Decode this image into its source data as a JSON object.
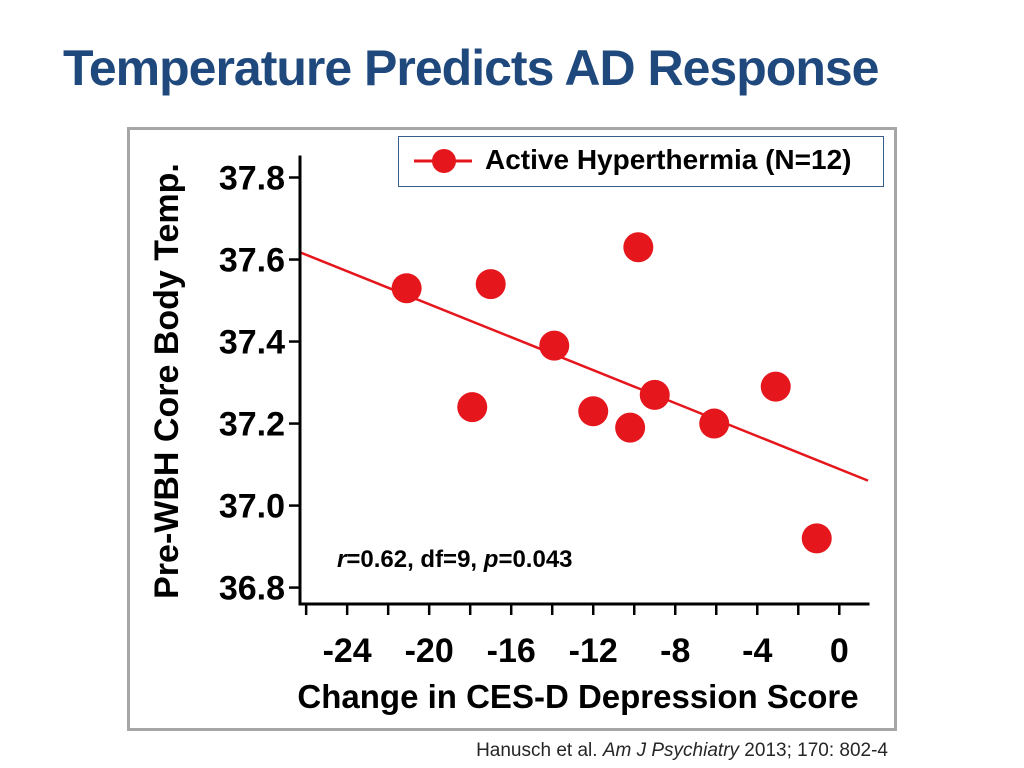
{
  "slide": {
    "title": "Temperature Predicts AD Response",
    "citation": [
      {
        "text": "Hanusch et al. ",
        "italic": false
      },
      {
        "text": "Am J Psychiatry",
        "italic": true
      },
      {
        "text": " 2013; 170: 802-4",
        "italic": false
      }
    ]
  },
  "colors": {
    "title": "#1F497D",
    "axes": "#000000",
    "frame_border": "#A6A6A6",
    "legend_border": "#385D8A"
  },
  "chart_data": {
    "type": "scatter",
    "xlabel": "Change in CES-D Depression Score",
    "ylabel": "Pre-WBH Core Body Temp.",
    "xlim": [
      -26.3,
      1.4
    ],
    "ylim": [
      36.76,
      37.85
    ],
    "xticks": [
      -24,
      -20,
      -16,
      -12,
      -8,
      -4,
      0
    ],
    "xtick_labels": [
      "-24",
      "-20",
      "-16",
      "-12",
      "-8",
      "-4",
      "0"
    ],
    "x_tick_marks": [
      -26,
      -24,
      -22,
      -20,
      -18,
      -16,
      -14,
      -12,
      -10,
      -8,
      -6,
      -4,
      -2,
      0
    ],
    "yticks": [
      36.8,
      37.0,
      37.2,
      37.4,
      37.6,
      37.8
    ],
    "ytick_labels": [
      "36.8",
      "37.0",
      "37.2",
      "37.4",
      "37.6",
      "37.8"
    ],
    "grid": false,
    "legend": {
      "position": "top-right"
    },
    "series": [
      {
        "name": "Active Hyperthermia (N=12)",
        "marker": "circle",
        "color": "#E5161C",
        "x": [
          -21.1,
          -17.9,
          -17.0,
          -13.9,
          -12.0,
          -10.2,
          -9.8,
          -9.0,
          -6.1,
          -3.1,
          -1.1
        ],
        "y": [
          37.53,
          37.24,
          37.54,
          37.39,
          37.23,
          37.19,
          37.63,
          37.27,
          37.2,
          37.29,
          36.92
        ]
      }
    ],
    "trendline": {
      "slope": -0.0201,
      "intercept": 37.089
    },
    "annotation": [
      {
        "text": "r",
        "italic": true
      },
      {
        "text": "=0.62, df=9, ",
        "italic": false
      },
      {
        "text": "p",
        "italic": true
      },
      {
        "text": "=0.043",
        "italic": false
      }
    ]
  }
}
